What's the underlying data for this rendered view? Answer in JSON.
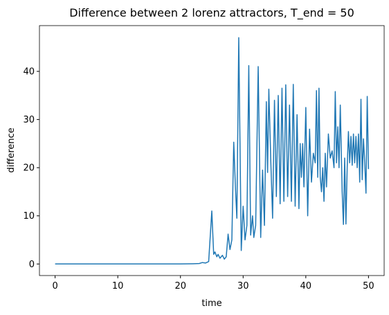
{
  "chart_data": {
    "type": "line",
    "title": "Difference between 2 lorenz attractors, T_end = 50",
    "xlabel": "time",
    "ylabel": "difference",
    "x": [
      0,
      5,
      10,
      15,
      20,
      21,
      22,
      23,
      23.5,
      24,
      24.5,
      25,
      25.3,
      25.5,
      25.8,
      26,
      26.3,
      26.7,
      27,
      27.3,
      27.6,
      27.9,
      28.2,
      28.5,
      28.8,
      29.0,
      29.3,
      29.7,
      30,
      30.3,
      30.6,
      30.9,
      31.2,
      31.5,
      31.7,
      32,
      32.4,
      32.8,
      33.1,
      33.4,
      33.7,
      33.9,
      34.1,
      34.4,
      34.7,
      35,
      35.3,
      35.6,
      35.9,
      36.2,
      36.5,
      36.8,
      37.1,
      37.4,
      37.7,
      38,
      38.3,
      38.6,
      38.9,
      39.1,
      39.3,
      39.5,
      39.7,
      40,
      40.3,
      40.6,
      40.9,
      41.2,
      41.5,
      41.7,
      41.9,
      42.1,
      42.3,
      42.5,
      42.7,
      42.9,
      43.1,
      43.3,
      43.6,
      43.9,
      44.2,
      44.5,
      44.7,
      44.9,
      45.1,
      45.3,
      45.5,
      45.8,
      46,
      46.2,
      46.4,
      46.6,
      46.8,
      47,
      47.2,
      47.4,
      47.6,
      47.8,
      48,
      48.2,
      48.4,
      48.6,
      48.8,
      49,
      49.2,
      49.4,
      49.6,
      49.8,
      50
    ],
    "series": [
      {
        "name": "difference",
        "color": "#1f77b4",
        "values": [
          0,
          0,
          0,
          0,
          0,
          0.02,
          0.05,
          0.1,
          0.3,
          0.2,
          0.5,
          11,
          2,
          2.5,
          1.5,
          2,
          1.2,
          1.8,
          1,
          1.5,
          6.2,
          3,
          5,
          25.3,
          15,
          9.5,
          47,
          2.8,
          12,
          5,
          8,
          41.2,
          6,
          10,
          5.5,
          8,
          41,
          5.5,
          19.5,
          8,
          33.7,
          19,
          36.3,
          22,
          9.5,
          34,
          14,
          35,
          12.5,
          36.5,
          13,
          37.2,
          14,
          33,
          13,
          37.3,
          12,
          31,
          11.5,
          25,
          18,
          25,
          16,
          32.5,
          10,
          28,
          17,
          23,
          21,
          36,
          18,
          36.5,
          18,
          15,
          20,
          13,
          23,
          16,
          27,
          22,
          23.5,
          20,
          35.8,
          21,
          28.5,
          20,
          33,
          15,
          8.2,
          22,
          8.3,
          20,
          27.5,
          21,
          26.5,
          20.5,
          27,
          21,
          26.5,
          20,
          27,
          17,
          34.2,
          17.5,
          26,
          21,
          14.7,
          34.8,
          19.7
        ]
      }
    ],
    "xlim": [
      -2.5,
      52.5
    ],
    "ylim": [
      -2.4,
      49.5
    ],
    "xticks": [
      0,
      10,
      20,
      30,
      40,
      50
    ],
    "yticks": [
      0,
      10,
      20,
      30,
      40
    ]
  }
}
